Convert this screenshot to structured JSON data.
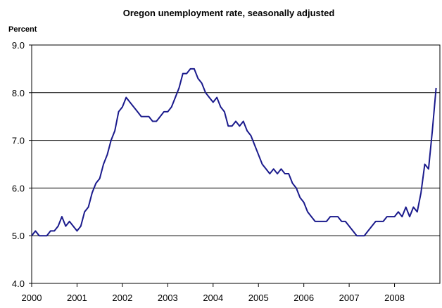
{
  "chart_data": {
    "type": "line",
    "title": "Oregon unemployment rate, seasonally adjusted",
    "ylabel": "Percent",
    "xlabel": "",
    "ylim": [
      4.0,
      9.0
    ],
    "yticks": [
      4.0,
      5.0,
      6.0,
      7.0,
      8.0,
      9.0
    ],
    "ytick_labels": [
      "4.0",
      "5.0",
      "6.0",
      "7.0",
      "8.0",
      "9.0"
    ],
    "xlim": [
      2000,
      2009
    ],
    "xtick_labels": [
      "2000",
      "2001",
      "2002",
      "2003",
      "2004",
      "2005",
      "2006",
      "2007",
      "2008"
    ],
    "grid": "horizontal",
    "line_color": "#1a1a8c",
    "series": [
      {
        "x_start_year": 2000,
        "x_step_months": 1,
        "values": [
          5.0,
          5.1,
          5.0,
          5.0,
          5.0,
          5.1,
          5.1,
          5.2,
          5.4,
          5.2,
          5.3,
          5.2,
          5.1,
          5.2,
          5.5,
          5.6,
          5.9,
          6.1,
          6.2,
          6.5,
          6.7,
          7.0,
          7.2,
          7.6,
          7.7,
          7.9,
          7.8,
          7.7,
          7.6,
          7.5,
          7.5,
          7.5,
          7.4,
          7.4,
          7.5,
          7.6,
          7.6,
          7.7,
          7.9,
          8.1,
          8.4,
          8.4,
          8.5,
          8.5,
          8.3,
          8.2,
          8.0,
          7.9,
          7.8,
          7.9,
          7.7,
          7.6,
          7.3,
          7.3,
          7.4,
          7.3,
          7.4,
          7.2,
          7.1,
          6.9,
          6.7,
          6.5,
          6.4,
          6.3,
          6.4,
          6.3,
          6.4,
          6.3,
          6.3,
          6.1,
          6.0,
          5.8,
          5.7,
          5.5,
          5.4,
          5.3,
          5.3,
          5.3,
          5.3,
          5.4,
          5.4,
          5.4,
          5.3,
          5.3,
          5.2,
          5.1,
          5.0,
          5.0,
          5.0,
          5.1,
          5.2,
          5.3,
          5.3,
          5.3,
          5.4,
          5.4,
          5.4,
          5.5,
          5.4,
          5.6,
          5.4,
          5.6,
          5.5,
          5.9,
          6.5,
          6.4,
          7.2,
          8.1
        ]
      }
    ]
  }
}
